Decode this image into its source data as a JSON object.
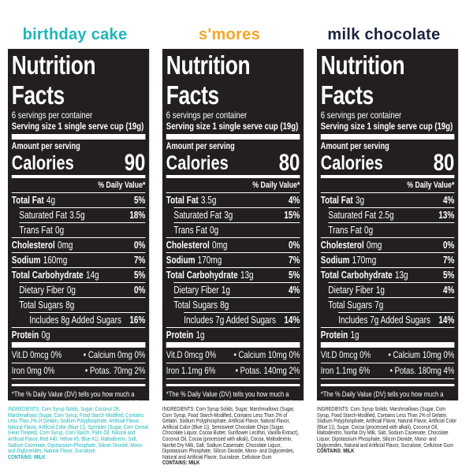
{
  "products": [
    {
      "name": "birthday cake",
      "color": "#1fb5b8",
      "ingredients_color": "#1fb5b8",
      "facts": {
        "title": "Nutrition Facts",
        "servings": "6 servings per container",
        "serving_size": "Serving size 1 single serve cup (19g)",
        "amount_per_serving": "Amount per serving",
        "calories_label": "Calories",
        "calories": 90,
        "dv_header": "% Daily Value*",
        "rows": [
          {
            "name": "Total Fat",
            "amount": "4g",
            "dv": "5%"
          },
          {
            "name": "Saturated Fat",
            "amount": "3.5g",
            "dv": "18%"
          },
          {
            "name": "Trans Fat",
            "amount": "0g"
          },
          {
            "name": "Cholesterol",
            "amount": "0mg",
            "dv": "0%"
          },
          {
            "name": "Sodium",
            "amount": "160mg",
            "dv": "7%"
          },
          {
            "name": "Total Carbohydrate",
            "amount": "14g",
            "dv": "5%"
          },
          {
            "name": "Dietary Fiber",
            "amount": "0g",
            "dv": "0%"
          },
          {
            "name": "Total Sugars",
            "amount": "8g"
          },
          {
            "name": "Includes 8g Added Sugars",
            "dv": "16%"
          },
          {
            "name": "Protein",
            "amount": "0g"
          }
        ],
        "vitamins": [
          [
            "Vit.D 0mcg 0%",
            "Calcium 0mg 0%"
          ],
          [
            "Iron 0mg 0%",
            "Potas. 70mg 2%"
          ]
        ],
        "footnote": "*The % Daily Value (DV) tells you how much a nutrient in a serving of food contributes to a daily diet. 2,000 calories a day is used for general nutrition advice."
      },
      "ingredients": "INGREDIENTS: Corn Syrup Solids, Sugar, Coconut Oil, Marshmallows (Sugar, Corn Syrup, Food Starch-Modified, Contains Less Than 2% of Gelatin, Sodium Polyphosphate, Artificial Flavor, Natural Flavor, Artificial Color (Blue 1)), Sprinkles (Sugar, Corn Cereal (Heat Treated), Corn Syrup, Corn Starch, Palm Oil, Natural and Artificial Flavor, Red #40, Yellow #5, Blue #1), Maltodextrin, Salt, Sodium Caseinate, Dipotassium Phosphate, Silicon Dioxide, Mono- and Diglycerides, Natural Flavor, Sucralose.",
      "contains": "CONTAINS: MILK"
    },
    {
      "name": "s'mores",
      "color": "#f5a623",
      "ingredients_color": "#231f20",
      "facts": {
        "title": "Nutrition Facts",
        "servings": "6 servings per container",
        "serving_size": "Serving size 1 single serve cup (19g)",
        "amount_per_serving": "Amount per serving",
        "calories_label": "Calories",
        "calories": 80,
        "dv_header": "% Daily Value*",
        "rows": [
          {
            "name": "Total Fat",
            "amount": "3.5g",
            "dv": "4%"
          },
          {
            "name": "Saturated Fat",
            "amount": "3g",
            "dv": "15%"
          },
          {
            "name": "Trans Fat",
            "amount": "0g"
          },
          {
            "name": "Cholesterol",
            "amount": "0mg",
            "dv": "0%"
          },
          {
            "name": "Sodium",
            "amount": "170mg",
            "dv": "7%"
          },
          {
            "name": "Total Carbohydrate",
            "amount": "13g",
            "dv": "5%"
          },
          {
            "name": "Dietary Fiber",
            "amount": "1g",
            "dv": "4%"
          },
          {
            "name": "Total Sugars",
            "amount": "8g"
          },
          {
            "name": "Includes 7g Added Sugars",
            "dv": "14%"
          },
          {
            "name": "Protein",
            "amount": "1g"
          }
        ],
        "vitamins": [
          [
            "Vit.D 0mcg 0%",
            "Calcium 10mg 0%"
          ],
          [
            "Iron 1.1mg 6%",
            "Potas. 140mg 2%"
          ]
        ],
        "footnote": "*The % Daily Value (DV) tells you how much a nutrient in a serving of food contributes to a daily diet. 2,000 calories a day is used for general nutrition advice."
      },
      "ingredients": "INGREDIENTS: Corn Syrup Solids, Sugar, Marshmallows (Sugar, Corn Syrup, Food Starch-Modified, Contains Less Than 2% of Gelatin, Sodium Polyphosphate, Artificial Flavor, Natural Flavor, Artificial Color (Blue 1)), Semisweet Chocolate Chips (Sugar, Chocolate Liquor, Cocoa Butter, Sunflower Lecithin, Vanilla Extract), Coconut Oil, Cocoa (processed with alkali), Cocoa, Maltodextrin, Nonfat Dry Milk, Salt, Sodium Caseinate, Chocolate Liquor, Dipotassium Phosphate, Silicon Dioxide, Mono- and Diglycerides, Natural and Artificial Flavor, Sucralose, Cellulose Gum",
      "contains": "CONTAINS: MILK"
    },
    {
      "name": "milk chocolate",
      "color": "#1c2340",
      "ingredients_color": "#231f20",
      "facts": {
        "title": "Nutrition Facts",
        "servings": "6 servings per container",
        "serving_size": "Serving size 1 single serve cup (19g)",
        "amount_per_serving": "Amount per serving",
        "calories_label": "Calories",
        "calories": 80,
        "dv_header": "% Daily Value*",
        "rows": [
          {
            "name": "Total Fat",
            "amount": "3g",
            "dv": "4%"
          },
          {
            "name": "Saturated Fat",
            "amount": "2.5g",
            "dv": "13%"
          },
          {
            "name": "Trans Fat",
            "amount": "0g"
          },
          {
            "name": "Cholesterol",
            "amount": "0mg",
            "dv": "0%"
          },
          {
            "name": "Sodium",
            "amount": "170mg",
            "dv": "7%"
          },
          {
            "name": "Total Carbohydrate",
            "amount": "13g",
            "dv": "5%"
          },
          {
            "name": "Dietary Fiber",
            "amount": "1g",
            "dv": "4%"
          },
          {
            "name": "Total Sugars",
            "amount": "7g"
          },
          {
            "name": "Includes 7g Added Sugars",
            "dv": "14%"
          },
          {
            "name": "Protein",
            "amount": "1g"
          }
        ],
        "vitamins": [
          [
            "Vit.D 0mcg 0%",
            "Calcium 10mg 0%"
          ],
          [
            "Iron 1.1mg 6%",
            "Potas. 180mg 4%"
          ]
        ],
        "footnote": "*The % Daily Value (DV) tells you how much a nutrient in a serving of food contributes to a daily diet. 2,000 calories a day is used for general nutrition advice."
      },
      "ingredients": "INGREDIENTS: Corn Syrup Solids, Marshmallows (Sugar, Corn Syrup, Food Starch-Modified, Contains Less Than 2% of Gelatin, Sodium Polyphosphate, Artificial Flavor, Natural Flavor, Artificial Color (Blue 1)), Sugar, Cocoa (processed with alkali), Coconut Oil, Maltodextrin, Nonfat Dry Milk, Salt, Sodium Caseinate, Chocolate Liquor, Dipotassium Phosphate, Silicon Dioxide, Mono- and Diglycerides, Natural and Artificial Flavor, Sucralose, Cellulose Gum",
      "contains": "CONTAINS: MILK"
    }
  ]
}
